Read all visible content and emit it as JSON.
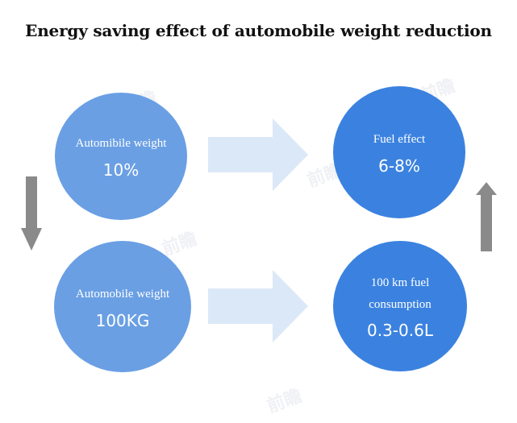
{
  "title": "Energy saving effect of automobile weight reduction",
  "nodes": {
    "top_left": {
      "label": "Automibile weight",
      "value": "10%"
    },
    "top_right": {
      "label": "Fuel effect",
      "value": "6-8%"
    },
    "bottom_left": {
      "label": "Automobile weight",
      "value": "100KG"
    },
    "bottom_right": {
      "label_line1": "100 km fuel",
      "label_line2": "consumption",
      "value": "0.3-0.6L"
    }
  },
  "watermark": "前瞻产业研究院",
  "colors": {
    "left_circle": "#6a9fe4",
    "right_circle": "#3b82e0",
    "horizontal_arrow": "#dbe8f7",
    "vertical_arrow": "#8a8a8a",
    "title_text": "#111111"
  }
}
